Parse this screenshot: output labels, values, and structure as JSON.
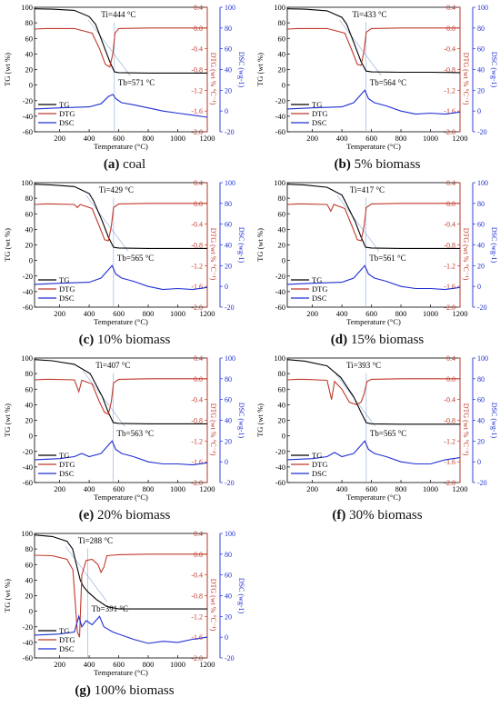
{
  "chart_data": [
    {
      "type": "line",
      "caption_letter": "(a)",
      "caption_text": "coal",
      "ti_label": "Ti=444 °C",
      "tb_label": "Tb=571 °C",
      "ti": 444,
      "tb": 571,
      "series": [
        {
          "name": "TG",
          "color": "#000000",
          "axis": "TG",
          "x": [
            30,
            150,
            300,
            400,
            444,
            500,
            540,
            571,
            600,
            800,
            1000,
            1200
          ],
          "y": [
            98,
            97.5,
            96,
            88,
            78,
            50,
            30,
            17,
            16,
            15.5,
            15.5,
            15.5
          ]
        },
        {
          "name": "DTG",
          "color": "#c0392b",
          "axis": "DTG",
          "x": [
            30,
            100,
            150,
            300,
            420,
            470,
            510,
            540,
            560,
            575,
            600,
            800,
            1200
          ],
          "y": [
            -0.02,
            -0.01,
            -0.01,
            -0.01,
            -0.1,
            -0.4,
            -0.7,
            -0.75,
            -0.5,
            -0.1,
            -0.01,
            0,
            0
          ]
        },
        {
          "name": "DSC",
          "color": "#1f2fd1",
          "axis": "DSC",
          "x": [
            30,
            200,
            400,
            480,
            530,
            560,
            580,
            620,
            700,
            800,
            900,
            1000,
            1100,
            1200
          ],
          "y": [
            2,
            3,
            4,
            7,
            14,
            16,
            12,
            8,
            6,
            3,
            0,
            -2,
            -4,
            -6
          ]
        }
      ]
    },
    {
      "type": "line",
      "caption_letter": "(b)",
      "caption_text": "5% biomass",
      "ti_label": "Ti=433 °C",
      "tb_label": "Tb=564 °C",
      "ti": 433,
      "tb": 564,
      "series": [
        {
          "name": "TG",
          "color": "#000000",
          "axis": "TG",
          "x": [
            30,
            150,
            300,
            400,
            433,
            490,
            530,
            564,
            600,
            800,
            1000,
            1200
          ],
          "y": [
            98,
            97.5,
            95.5,
            87,
            78,
            50,
            30,
            18,
            17,
            16.5,
            16.5,
            16
          ]
        },
        {
          "name": "DTG",
          "color": "#c0392b",
          "axis": "DTG",
          "x": [
            30,
            100,
            150,
            300,
            420,
            470,
            505,
            530,
            550,
            565,
            600,
            800,
            1200
          ],
          "y": [
            -0.02,
            -0.01,
            -0.01,
            -0.01,
            -0.1,
            -0.45,
            -0.7,
            -0.72,
            -0.45,
            -0.08,
            -0.01,
            0,
            0
          ]
        },
        {
          "name": "DSC",
          "color": "#1f2fd1",
          "axis": "DSC",
          "x": [
            30,
            200,
            400,
            480,
            530,
            555,
            580,
            620,
            700,
            800,
            900,
            1000,
            1100,
            1200
          ],
          "y": [
            2,
            3,
            4,
            8,
            16,
            20,
            12,
            8,
            5,
            0,
            -3,
            -2,
            -3,
            -1
          ]
        }
      ]
    },
    {
      "type": "line",
      "caption_letter": "(c)",
      "caption_text": "10% biomass",
      "ti_label": "Ti=429 °C",
      "tb_label": "Tb=565 °C",
      "ti": 429,
      "tb": 565,
      "series": [
        {
          "name": "TG",
          "color": "#000000",
          "axis": "TG",
          "x": [
            30,
            150,
            300,
            400,
            429,
            490,
            530,
            565,
            600,
            800,
            1000,
            1200
          ],
          "y": [
            98,
            97,
            95,
            86,
            77,
            50,
            30,
            17,
            16,
            15.5,
            15.5,
            15.5
          ]
        },
        {
          "name": "DTG",
          "color": "#c0392b",
          "axis": "DTG",
          "x": [
            30,
            100,
            150,
            300,
            320,
            340,
            420,
            470,
            505,
            530,
            550,
            565,
            600,
            800,
            1200
          ],
          "y": [
            -0.02,
            -0.01,
            -0.01,
            -0.02,
            -0.08,
            -0.02,
            -0.1,
            -0.45,
            -0.7,
            -0.72,
            -0.45,
            -0.08,
            -0.01,
            0,
            0
          ]
        },
        {
          "name": "DSC",
          "color": "#1f2fd1",
          "axis": "DSC",
          "x": [
            30,
            200,
            400,
            480,
            530,
            555,
            580,
            620,
            700,
            800,
            900,
            1000,
            1100,
            1200
          ],
          "y": [
            2,
            3,
            4,
            8,
            16,
            20,
            12,
            8,
            5,
            0,
            -3,
            -2,
            -3,
            -1
          ]
        }
      ]
    },
    {
      "type": "line",
      "caption_letter": "(d)",
      "caption_text": "15% biomass",
      "ti_label": "Ti=417 °C",
      "tb_label": "Tb=561 °C",
      "ti": 417,
      "tb": 561,
      "series": [
        {
          "name": "TG",
          "color": "#000000",
          "axis": "TG",
          "x": [
            30,
            150,
            300,
            400,
            417,
            490,
            530,
            561,
            600,
            800,
            1000,
            1200
          ],
          "y": [
            98,
            97,
            94,
            84,
            78,
            50,
            30,
            17,
            16,
            15.5,
            15.5,
            15.5
          ]
        },
        {
          "name": "DTG",
          "color": "#c0392b",
          "axis": "DTG",
          "x": [
            30,
            100,
            150,
            300,
            325,
            345,
            420,
            470,
            505,
            530,
            550,
            565,
            600,
            800,
            1200
          ],
          "y": [
            -0.02,
            -0.01,
            -0.01,
            -0.02,
            -0.15,
            -0.02,
            -0.1,
            -0.45,
            -0.7,
            -0.72,
            -0.45,
            -0.08,
            -0.01,
            0,
            0
          ]
        },
        {
          "name": "DSC",
          "color": "#1f2fd1",
          "axis": "DSC",
          "x": [
            30,
            200,
            400,
            480,
            530,
            555,
            580,
            620,
            700,
            800,
            900,
            1000,
            1100,
            1200
          ],
          "y": [
            2,
            3,
            4,
            8,
            16,
            20,
            12,
            8,
            5,
            0,
            -2,
            -2,
            -3,
            -1
          ]
        }
      ]
    },
    {
      "type": "line",
      "caption_letter": "(e)",
      "caption_text": "20% biomass",
      "ti_label": "Ti=407 °C",
      "tb_label": "Tb=563 °C",
      "ti": 407,
      "tb": 563,
      "series": [
        {
          "name": "TG",
          "color": "#000000",
          "axis": "TG",
          "x": [
            30,
            150,
            300,
            407,
            490,
            530,
            563,
            600,
            800,
            1000,
            1200
          ],
          "y": [
            98,
            96.5,
            92,
            80,
            50,
            30,
            17,
            16,
            15.5,
            15.5,
            15.5
          ]
        },
        {
          "name": "DTG",
          "color": "#c0392b",
          "axis": "DTG",
          "x": [
            30,
            100,
            150,
            300,
            330,
            350,
            420,
            470,
            505,
            530,
            550,
            565,
            600,
            800,
            1200
          ],
          "y": [
            -0.02,
            -0.01,
            -0.01,
            -0.02,
            -0.25,
            -0.03,
            -0.1,
            -0.45,
            -0.65,
            -0.68,
            -0.45,
            -0.08,
            -0.01,
            0,
            0
          ]
        },
        {
          "name": "DSC",
          "color": "#1f2fd1",
          "axis": "DSC",
          "x": [
            30,
            200,
            300,
            350,
            400,
            480,
            530,
            555,
            580,
            620,
            700,
            800,
            900,
            1000,
            1100,
            1200
          ],
          "y": [
            2,
            3,
            5,
            8,
            5,
            8,
            16,
            20,
            12,
            8,
            5,
            0,
            -2,
            -2,
            -3,
            -1
          ]
        }
      ]
    },
    {
      "type": "line",
      "caption_letter": "(f)",
      "caption_text": "30% biomass",
      "ti_label": "Ti=393 °C",
      "tb_label": "Tb=565 °C",
      "ti": 393,
      "tb": 565,
      "series": [
        {
          "name": "TG",
          "color": "#000000",
          "axis": "TG",
          "x": [
            30,
            150,
            300,
            393,
            480,
            530,
            565,
            600,
            800,
            1000,
            1200
          ],
          "y": [
            98,
            96,
            90,
            75,
            50,
            30,
            17,
            15.5,
            15,
            15,
            15
          ]
        },
        {
          "name": "DTG",
          "color": "#c0392b",
          "axis": "DTG",
          "x": [
            30,
            100,
            150,
            300,
            330,
            350,
            400,
            450,
            500,
            530,
            550,
            570,
            600,
            800,
            1200
          ],
          "y": [
            -0.02,
            -0.01,
            -0.01,
            -0.03,
            -0.4,
            -0.05,
            -0.2,
            -0.45,
            -0.5,
            -0.45,
            -0.3,
            -0.05,
            -0.01,
            0,
            0
          ]
        },
        {
          "name": "DSC",
          "color": "#1f2fd1",
          "axis": "DSC",
          "x": [
            30,
            200,
            300,
            350,
            400,
            480,
            530,
            555,
            580,
            620,
            700,
            800,
            900,
            1000,
            1100,
            1200
          ],
          "y": [
            2,
            3,
            5,
            9,
            5,
            8,
            16,
            20,
            12,
            8,
            5,
            0,
            -2,
            -2,
            2,
            4
          ]
        }
      ]
    },
    {
      "type": "line",
      "caption_letter": "(g)",
      "caption_text": "100% biomass",
      "ti_label": "Ti=288 °C",
      "tb_label": "Tb=391 °C",
      "ti": 288,
      "tb": 391,
      "series": [
        {
          "name": "TG",
          "color": "#000000",
          "axis": "TG",
          "x": [
            30,
            150,
            250,
            288,
            320,
            340,
            360,
            391,
            450,
            520,
            600,
            800,
            1200
          ],
          "y": [
            98,
            96,
            90,
            80,
            55,
            40,
            32,
            25,
            15,
            6,
            3,
            3,
            3
          ]
        },
        {
          "name": "DTG",
          "color": "#c0392b",
          "axis": "DTG",
          "x": [
            30,
            150,
            250,
            290,
            320,
            335,
            350,
            380,
            420,
            460,
            480,
            500,
            520,
            600,
            800,
            1200
          ],
          "y": [
            -0.02,
            -0.03,
            -0.1,
            -0.3,
            -1.5,
            -1.6,
            -0.4,
            -0.12,
            -0.1,
            -0.2,
            -0.35,
            -0.25,
            -0.03,
            -0.01,
            0,
            0
          ]
        },
        {
          "name": "DSC",
          "color": "#1f2fd1",
          "axis": "DSC",
          "x": [
            30,
            200,
            300,
            330,
            350,
            380,
            420,
            470,
            500,
            560,
            700,
            800,
            900,
            1000,
            1100,
            1200
          ],
          "y": [
            2,
            3,
            5,
            20,
            10,
            16,
            12,
            20,
            10,
            5,
            -2,
            -6,
            -4,
            -5,
            -2,
            0
          ]
        }
      ]
    }
  ],
  "axes": {
    "x_label": "Temperature (°C)",
    "x_ticks": [
      "200",
      "400",
      "600",
      "800",
      "1000",
      "1200"
    ],
    "x_range": [
      30,
      1200
    ],
    "tg_label": "TG (wt %)",
    "tg_ticks": [
      "-60",
      "-40",
      "-20",
      "0",
      "20",
      "40",
      "60",
      "80",
      "100"
    ],
    "tg_range": [
      -60,
      100
    ],
    "dtg_label": "DTG (wt % °C⁻¹)",
    "dtg_ticks": [
      "0.4",
      "0.0",
      "-0.4",
      "-0.8",
      "-1.2",
      "-1.6",
      "-2.0"
    ],
    "dtg_range": [
      -2.0,
      0.4
    ],
    "dsc_label": "DSC (wg-1)",
    "dsc_ticks": [
      "100",
      "80",
      "60",
      "40",
      "20",
      "0",
      "-20"
    ],
    "dsc_range": [
      -20,
      100
    ]
  },
  "legend": [
    "TG",
    "DTG",
    "DSC"
  ],
  "colors": {
    "tg": "#000000",
    "dtg": "#c0392b",
    "dsc": "#1f2fd1"
  }
}
